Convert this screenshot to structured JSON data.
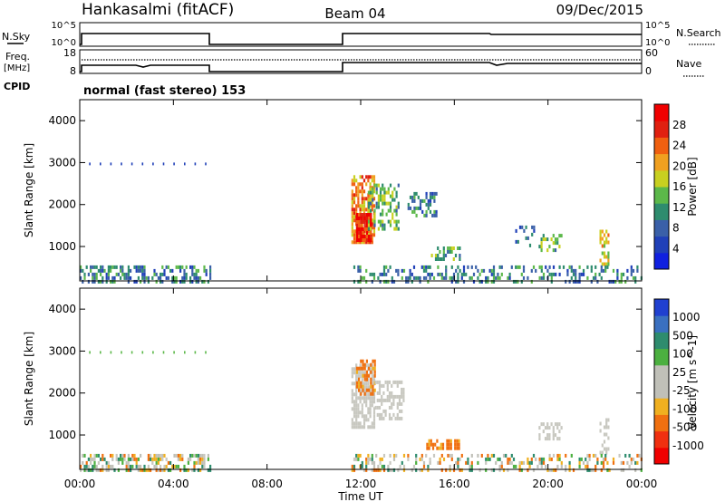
{
  "header": {
    "station": "Hankasalmi (fitACF)",
    "beam": "Beam 04",
    "date": "09/Dec/2015"
  },
  "param_panels": {
    "nsky_label": "N.Sky",
    "nsky_ticks": [
      "10^5",
      "10^0"
    ],
    "nsearch_label": "N.Search",
    "nsearch_ticks": [
      "10^5",
      "10^0"
    ],
    "freq_label": "Freq.",
    "freq_unit": "[MHz]",
    "freq_ticks": [
      "18",
      "8"
    ],
    "nave_label": "Nave",
    "nave_ticks": [
      "60",
      "0"
    ],
    "cpid_label": "CPID",
    "cpid_text": "normal (fast stereo) 153"
  },
  "colors": {
    "power_scale": [
      "#1020e0",
      "#2040b8",
      "#3a60a8",
      "#2e8c6e",
      "#5cb84a",
      "#c8d020",
      "#f0a020",
      "#f06010",
      "#e02010",
      "#f00000"
    ],
    "velocity_scale": [
      "#2040d0",
      "#3a70c0",
      "#2e8c6e",
      "#4cb040",
      "#c0c0b8",
      "#c0c0b8",
      "#f0b020",
      "#f07010",
      "#f03010",
      "#f00000"
    ],
    "radar_gray": "#c8c8c0"
  },
  "chart_data": [
    {
      "type": "heatmap",
      "panel": "power",
      "ylabel": "Slant Range [km]",
      "ylim": [
        180,
        4500
      ],
      "yticks": [
        "1000",
        "2000",
        "3000",
        "4000"
      ],
      "xlim_hours": [
        0,
        24
      ],
      "colorbar_label": "Power [dB]",
      "colorbar_ticks": [
        "4",
        "8",
        "12",
        "16",
        "20",
        "24",
        "28"
      ],
      "colorbar_range": [
        0,
        32
      ],
      "regions": [
        {
          "t": [
            0,
            5.6
          ],
          "r": [
            200,
            550
          ],
          "level": 10,
          "density": 0.55
        },
        {
          "t": [
            11.6,
            12.6
          ],
          "r": [
            1100,
            2700
          ],
          "level": 22,
          "density": 0.7
        },
        {
          "t": [
            11.8,
            12.4
          ],
          "r": [
            1150,
            1800
          ],
          "level": 29,
          "density": 0.9
        },
        {
          "t": [
            12.3,
            13.6
          ],
          "r": [
            1400,
            2500
          ],
          "level": 14,
          "density": 0.5
        },
        {
          "t": [
            14.0,
            15.2
          ],
          "r": [
            1700,
            2300
          ],
          "level": 10,
          "density": 0.4
        },
        {
          "t": [
            15.0,
            16.2
          ],
          "r": [
            700,
            1000
          ],
          "level": 14,
          "density": 0.5
        },
        {
          "t": [
            18.6,
            19.4
          ],
          "r": [
            1000,
            1500
          ],
          "level": 9,
          "density": 0.35
        },
        {
          "t": [
            19.6,
            20.6
          ],
          "r": [
            900,
            1300
          ],
          "level": 14,
          "density": 0.5
        },
        {
          "t": [
            22.2,
            22.6
          ],
          "r": [
            600,
            1400
          ],
          "level": 18,
          "density": 0.6
        },
        {
          "t": [
            11.6,
            24.0
          ],
          "r": [
            200,
            550
          ],
          "level": 10,
          "density": 0.35
        }
      ],
      "range_gates_3000km": {
        "t": [
          0,
          5.6
        ],
        "r": 2980
      }
    },
    {
      "type": "heatmap",
      "panel": "velocity",
      "ylabel": "Slant Range [km]",
      "ylim": [
        180,
        4500
      ],
      "yticks": [
        "1000",
        "2000",
        "3000",
        "4000"
      ],
      "xlim_hours": [
        0,
        24
      ],
      "xticks": [
        "00:00",
        "04:00",
        "08:00",
        "12:00",
        "16:00",
        "20:00",
        "00:00"
      ],
      "xlabel": "Time UT",
      "colorbar_label": "Velocity [m s^-1]",
      "colorbar_ticks": [
        "1000",
        "500",
        "100",
        "25",
        "-25",
        "-100",
        "-500",
        "-1000"
      ],
      "regions": [
        {
          "t": [
            0,
            5.6
          ],
          "r": [
            200,
            550
          ],
          "class": "mixed",
          "density": 0.5
        },
        {
          "t": [
            11.6,
            12.6
          ],
          "r": [
            1200,
            2700
          ],
          "class": "gray",
          "density": 0.75
        },
        {
          "t": [
            11.8,
            12.6
          ],
          "r": [
            2000,
            2800
          ],
          "class": "orange",
          "density": 0.5
        },
        {
          "t": [
            12.6,
            13.8
          ],
          "r": [
            1400,
            2300
          ],
          "class": "gray",
          "density": 0.5
        },
        {
          "t": [
            14.8,
            16.2
          ],
          "r": [
            650,
            900
          ],
          "class": "orange",
          "density": 0.6
        },
        {
          "t": [
            19.6,
            20.6
          ],
          "r": [
            900,
            1300
          ],
          "class": "gray",
          "density": 0.55
        },
        {
          "t": [
            22.2,
            22.6
          ],
          "r": [
            600,
            1400
          ],
          "class": "gray",
          "density": 0.5
        },
        {
          "t": [
            11.6,
            24.0
          ],
          "r": [
            200,
            550
          ],
          "class": "mixed",
          "density": 0.35
        }
      ]
    }
  ]
}
